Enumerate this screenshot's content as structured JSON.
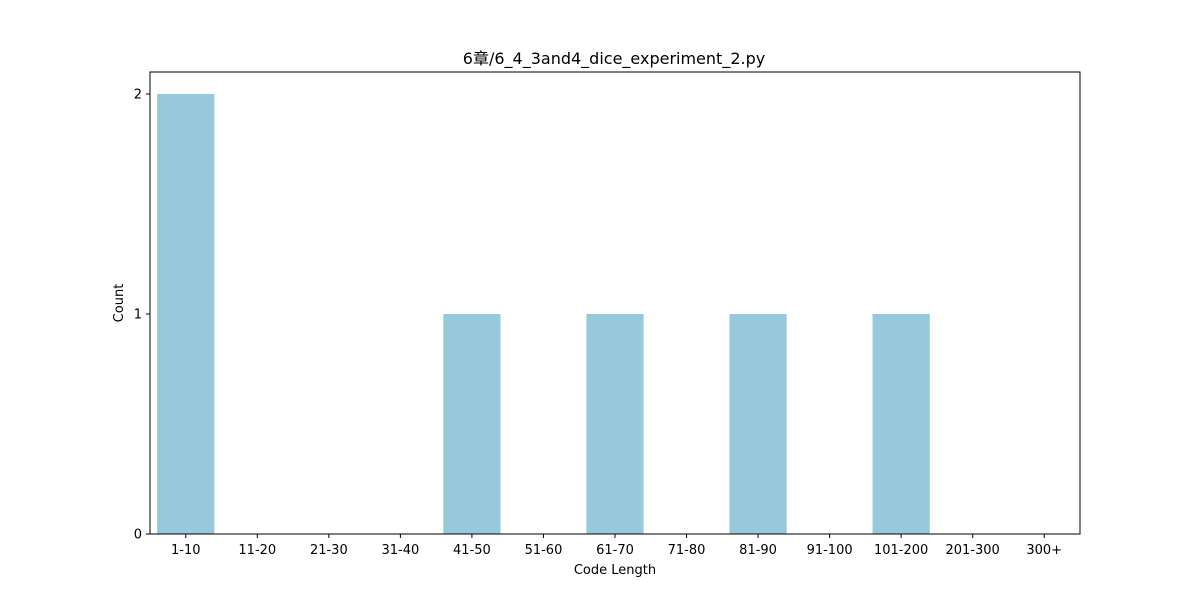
{
  "chart_data": {
    "type": "bar",
    "title": "6章/6_4_3and4_dice_experiment_2.py",
    "xlabel": "Code Length",
    "ylabel": "Count",
    "categories": [
      "1-10",
      "11-20",
      "21-30",
      "31-40",
      "41-50",
      "51-60",
      "61-70",
      "71-80",
      "81-90",
      "91-100",
      "101-200",
      "201-300",
      "300+"
    ],
    "values": [
      2,
      0,
      0,
      0,
      1,
      0,
      1,
      0,
      1,
      0,
      1,
      0,
      0
    ],
    "ylim": [
      0,
      2.1
    ],
    "yticks": [
      0,
      1,
      2
    ],
    "grid": false,
    "legend": "none",
    "bar_color": "#96c9dc"
  }
}
